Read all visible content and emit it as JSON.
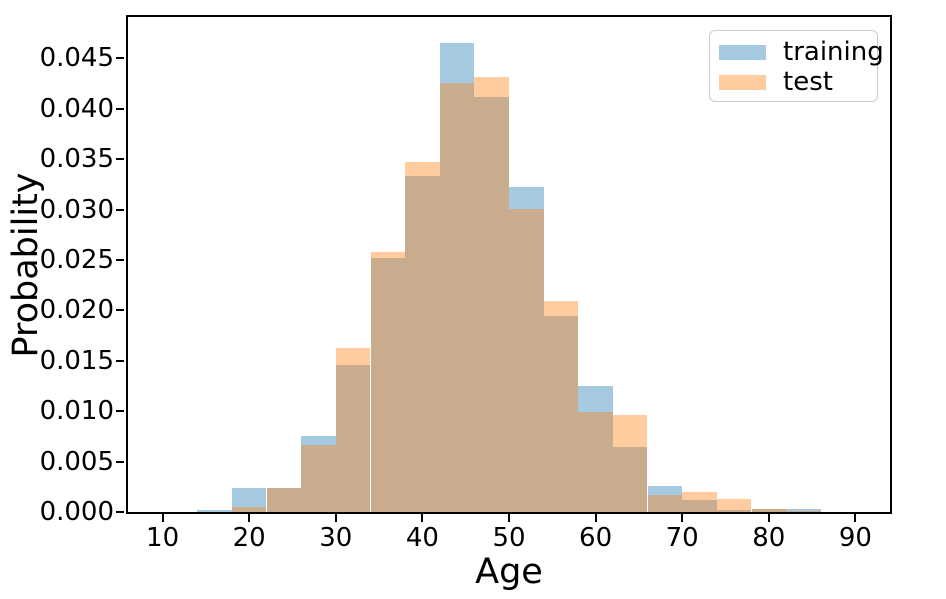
{
  "chart_data": {
    "type": "histogram",
    "title": "",
    "xlabel": "Age",
    "ylabel": "Probability",
    "xlim": [
      6,
      94
    ],
    "ylim": [
      0,
      0.0491
    ],
    "xticks": [
      10,
      20,
      30,
      40,
      50,
      60,
      70,
      80,
      90
    ],
    "yticks": [
      0.0,
      0.005,
      0.01,
      0.015,
      0.02,
      0.025,
      0.03,
      0.035,
      0.04,
      0.045
    ],
    "ytick_decimals": 3,
    "grid": false,
    "bin_width": 4,
    "bin_left_edges": [
      10,
      14,
      18,
      22,
      26,
      30,
      34,
      38,
      42,
      46,
      50,
      54,
      58,
      62,
      66,
      70,
      74,
      78,
      82
    ],
    "series": [
      {
        "name": "training",
        "color": "#1f77b4",
        "alpha": 0.4,
        "values": [
          0.0,
          0.0002,
          0.0024,
          0.0024,
          0.0075,
          0.0146,
          0.0252,
          0.0333,
          0.0465,
          0.0412,
          0.0322,
          0.0194,
          0.0125,
          0.0065,
          0.0026,
          0.0012,
          0.0002,
          0.0003,
          0.0003
        ]
      },
      {
        "name": "test",
        "color": "#ff7f0e",
        "alpha": 0.4,
        "values": [
          0.0,
          0.0,
          0.0005,
          0.0024,
          0.0067,
          0.0163,
          0.0258,
          0.0347,
          0.0426,
          0.0432,
          0.0301,
          0.0209,
          0.0099,
          0.0096,
          0.0017,
          0.002,
          0.0013,
          0.0003,
          0.0001
        ]
      }
    ],
    "legend": {
      "position": "upper right",
      "entries": [
        "training",
        "test"
      ]
    }
  }
}
